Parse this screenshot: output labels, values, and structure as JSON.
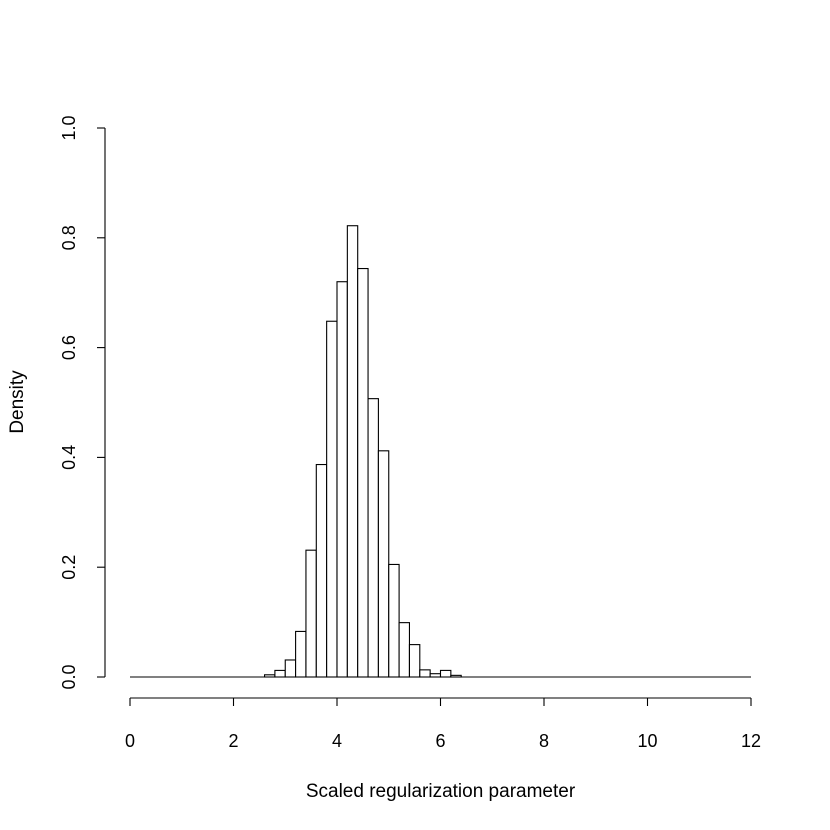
{
  "chart_data": {
    "type": "histogram",
    "title": "",
    "xlabel": "Scaled regularization parameter",
    "ylabel": "Density",
    "xlim": [
      0,
      12
    ],
    "ylim": [
      0,
      1.0
    ],
    "x_ticks": [
      "0",
      "2",
      "4",
      "6",
      "8",
      "10",
      "12"
    ],
    "y_ticks": [
      "0.0",
      "0.2",
      "0.4",
      "0.6",
      "0.8",
      "1.0"
    ],
    "bin_width": 0.2,
    "bins": [
      {
        "x0": 2.6,
        "x1": 2.8,
        "density": 0.004
      },
      {
        "x0": 2.8,
        "x1": 3.0,
        "density": 0.012
      },
      {
        "x0": 3.0,
        "x1": 3.2,
        "density": 0.031
      },
      {
        "x0": 3.2,
        "x1": 3.4,
        "density": 0.083
      },
      {
        "x0": 3.4,
        "x1": 3.6,
        "density": 0.231
      },
      {
        "x0": 3.6,
        "x1": 3.8,
        "density": 0.387
      },
      {
        "x0": 3.8,
        "x1": 4.0,
        "density": 0.648
      },
      {
        "x0": 4.0,
        "x1": 4.2,
        "density": 0.72
      },
      {
        "x0": 4.2,
        "x1": 4.4,
        "density": 0.822
      },
      {
        "x0": 4.4,
        "x1": 4.6,
        "density": 0.744
      },
      {
        "x0": 4.6,
        "x1": 4.8,
        "density": 0.507
      },
      {
        "x0": 4.8,
        "x1": 5.0,
        "density": 0.412
      },
      {
        "x0": 5.0,
        "x1": 5.2,
        "density": 0.205
      },
      {
        "x0": 5.2,
        "x1": 5.4,
        "density": 0.099
      },
      {
        "x0": 5.4,
        "x1": 5.6,
        "density": 0.059
      },
      {
        "x0": 5.6,
        "x1": 5.8,
        "density": 0.013
      },
      {
        "x0": 5.8,
        "x1": 6.0,
        "density": 0.006
      },
      {
        "x0": 6.0,
        "x1": 6.2,
        "density": 0.012
      },
      {
        "x0": 6.2,
        "x1": 6.4,
        "density": 0.003
      }
    ],
    "grid": false,
    "legend": "none"
  }
}
